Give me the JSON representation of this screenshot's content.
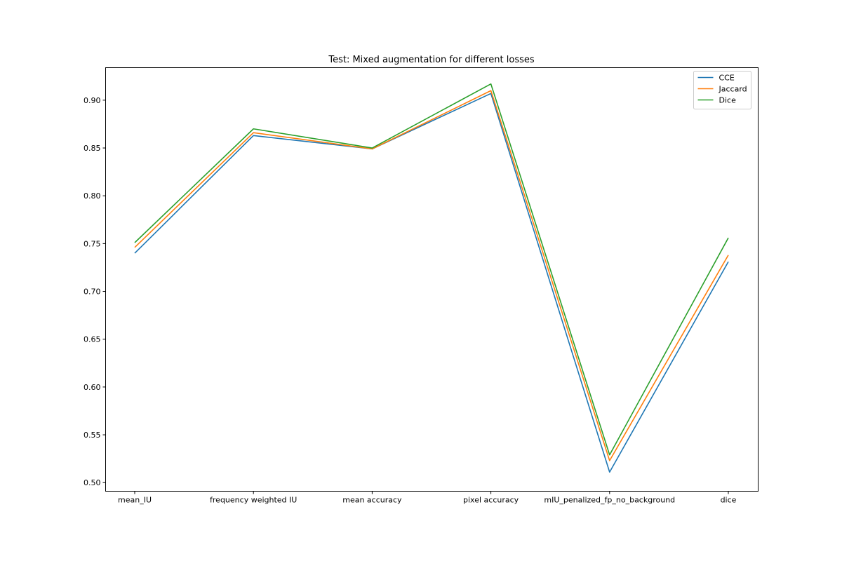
{
  "chart_data": {
    "type": "line",
    "title": "Test: Mixed augmentation for different losses",
    "xlabel": "",
    "ylabel": "",
    "categories": [
      "mean_IU",
      "frequency weighted IU",
      "mean accuracy",
      "pixel accuracy",
      "mIU_penalized_fp_no_background",
      "dice"
    ],
    "yticks": [
      0.5,
      0.55,
      0.6,
      0.65,
      0.7,
      0.75,
      0.8,
      0.85,
      0.9
    ],
    "ylim": [
      0.491,
      0.934
    ],
    "grid": false,
    "legend_position": "upper right",
    "series": [
      {
        "name": "CCE",
        "color": "#1f77b4",
        "values": [
          0.74,
          0.863,
          0.849,
          0.907,
          0.511,
          0.731
        ]
      },
      {
        "name": "Jaccard",
        "color": "#ff7f0e",
        "values": [
          0.746,
          0.866,
          0.849,
          0.91,
          0.523,
          0.738
        ]
      },
      {
        "name": "Dice",
        "color": "#2ca02c",
        "values": [
          0.751,
          0.87,
          0.85,
          0.917,
          0.529,
          0.756
        ]
      }
    ]
  }
}
